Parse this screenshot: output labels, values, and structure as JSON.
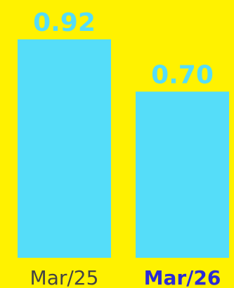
{
  "colors": {
    "background": "#FFF200",
    "bar": "#55DDF9",
    "value_label": "#55DDF9",
    "category_label_regular": "#444444",
    "category_label_highlight": "#2B2BD6"
  },
  "chart_data": {
    "type": "bar",
    "title": "",
    "xlabel": "",
    "ylabel": "",
    "categories": [
      "Mar/25",
      "Mar/26"
    ],
    "values": [
      0.92,
      0.7
    ],
    "value_labels": [
      "0.92",
      "0.70"
    ],
    "highlighted_category": "Mar/26",
    "ylim": [
      0,
      1.08
    ],
    "grid": false,
    "legend": "none"
  }
}
